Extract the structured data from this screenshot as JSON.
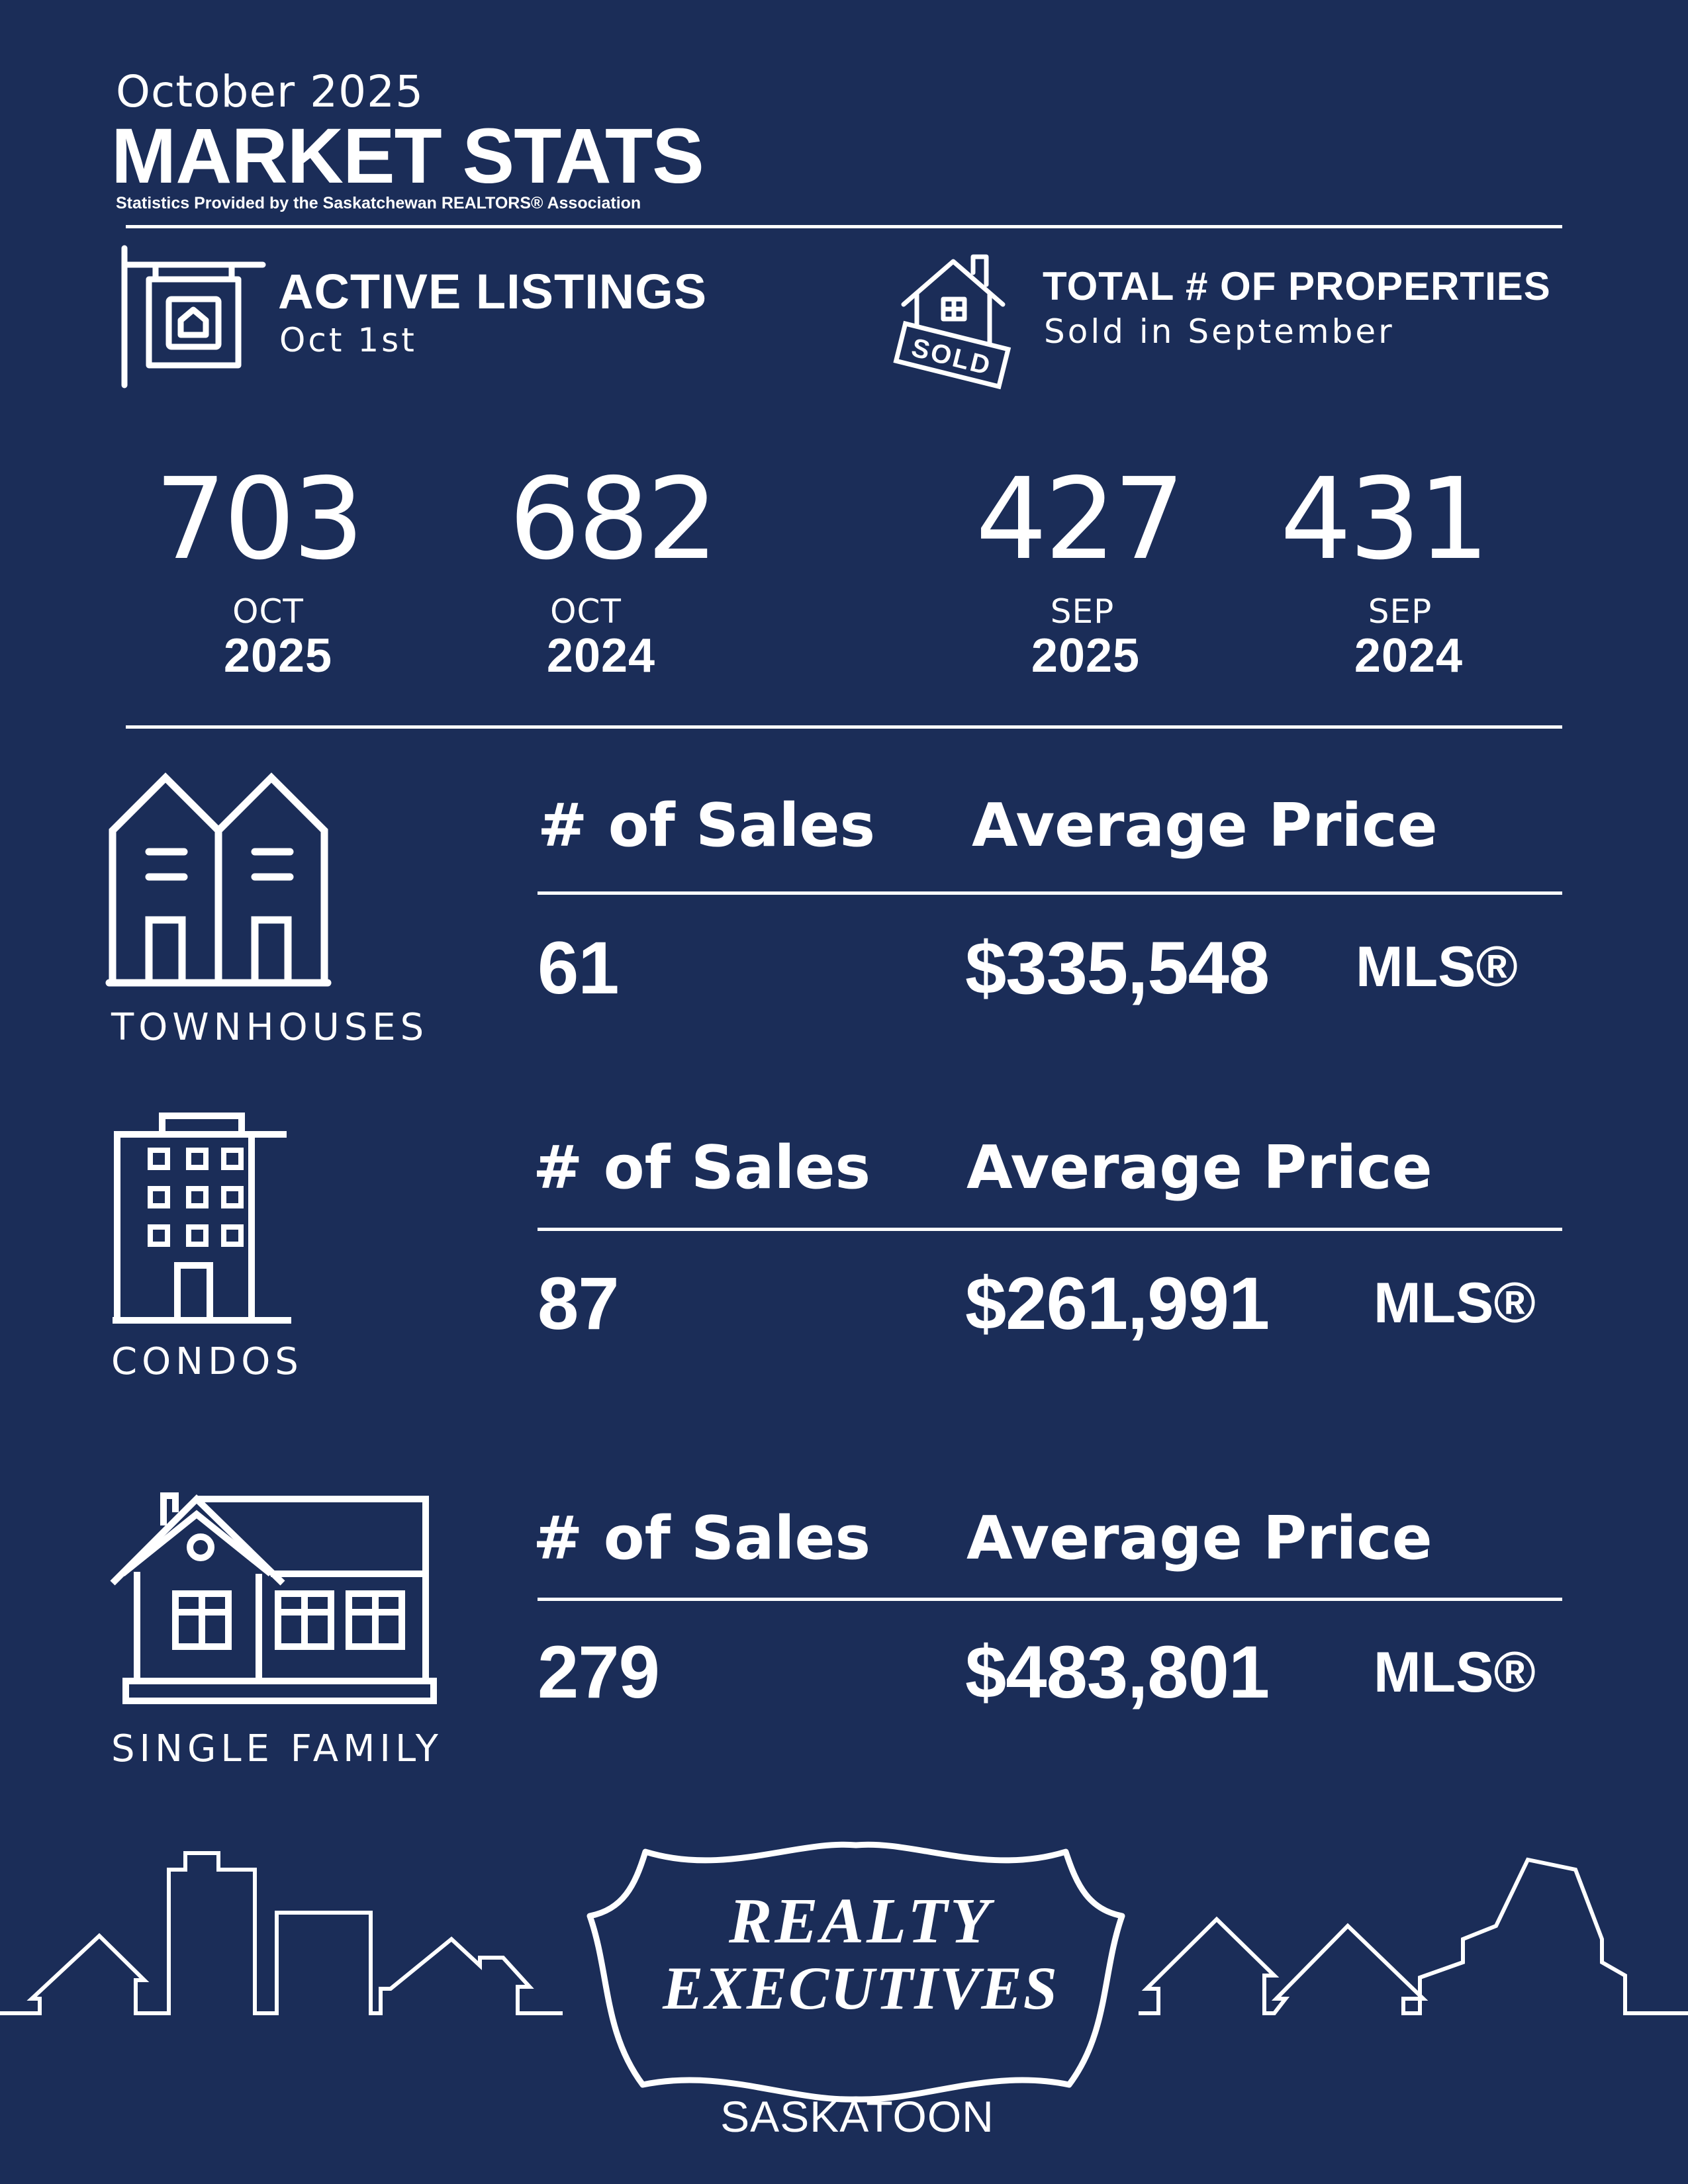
{
  "header": {
    "month": "October 2025",
    "title": "MARKET STATS",
    "source": "Statistics Provided by the Saskatchewan REALTORS® Association"
  },
  "active_listings": {
    "title": "ACTIVE LISTINGS",
    "subtitle": "Oct 1st",
    "current": {
      "value": "703",
      "month": "OCT",
      "year": "2025"
    },
    "previous": {
      "value": "682",
      "month": "OCT",
      "year": "2024"
    }
  },
  "properties_sold": {
    "title": "TOTAL # OF PROPERTIES",
    "subtitle": "Sold in September",
    "badge": "SOLD",
    "current": {
      "value": "427",
      "month": "SEP",
      "year": "2025"
    },
    "previous": {
      "value": "431",
      "month": "SEP",
      "year": "2024"
    }
  },
  "categories": [
    {
      "name": "TOWNHOUSES",
      "sales_label": "# of Sales",
      "price_label": "Average Price",
      "sales": "61",
      "price": "$335,548",
      "suffix": "MLS®",
      "icon": "townhouse-icon"
    },
    {
      "name": "CONDOS",
      "sales_label": "# of Sales",
      "price_label": "Average Price",
      "sales": "87",
      "price": "$261,991",
      "suffix": "MLS®",
      "icon": "condo-building-icon"
    },
    {
      "name": "SINGLE FAMILY",
      "sales_label": "# of Sales",
      "price_label": "Average Price",
      "sales": "279",
      "price": "$483,801",
      "suffix": "MLS®",
      "icon": "single-family-house-icon"
    }
  ],
  "footer": {
    "logo_line1": "REALTY",
    "logo_line2": "EXECUTIVES",
    "city": "SASKATOON"
  },
  "colors": {
    "background": "#1b2d58",
    "foreground": "#ffffff"
  }
}
